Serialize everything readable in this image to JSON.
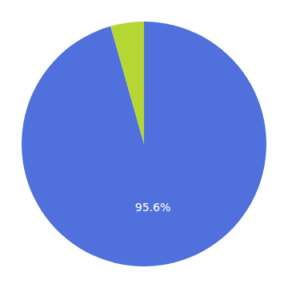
{
  "chart_data": {
    "type": "pie",
    "values": [
      95.6,
      4.4
    ],
    "data_labels": true,
    "value_labels": [
      "95.6%",
      null
    ]
  }
}
